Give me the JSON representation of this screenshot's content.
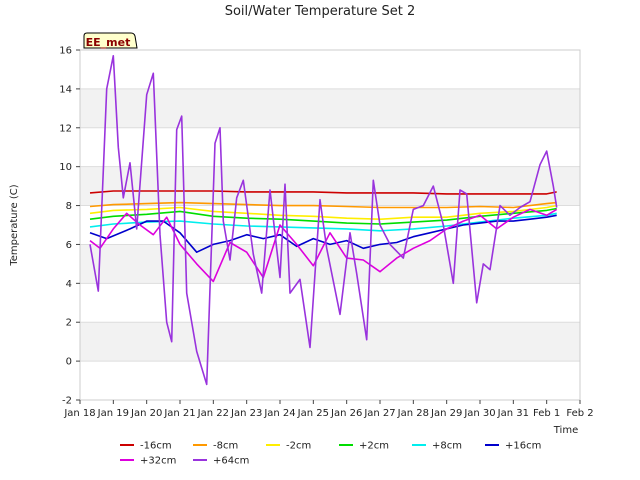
{
  "chart_data": {
    "type": "line",
    "title": "Soil/Water Temperature Set 2",
    "xlabel": "Time",
    "ylabel": "Temperature (C)",
    "badge": "EE_met",
    "xlim": [
      0,
      15
    ],
    "ylim": [
      -2,
      16
    ],
    "x_ticks": [
      0,
      1,
      2,
      3,
      4,
      5,
      6,
      7,
      8,
      9,
      10,
      11,
      12,
      13,
      14,
      15
    ],
    "x_tick_labels": [
      "Jan 18",
      "Jan 19",
      "Jan 20",
      "Jan 21",
      "Jan 22",
      "Jan 23",
      "Jan 24",
      "Jan 25",
      "Jan 26",
      "Jan 27",
      "Jan 28",
      "Jan 29",
      "Jan 30",
      "Jan 31",
      "Feb 1",
      "Feb 2"
    ],
    "y_ticks": [
      -2,
      0,
      2,
      4,
      6,
      8,
      10,
      12,
      14,
      16
    ],
    "y_tick_labels": [
      "-2",
      "0",
      "2",
      "4",
      "6",
      "8",
      "10",
      "12",
      "14",
      "16"
    ],
    "grid_bands": true,
    "legend_position": "bottom",
    "series": [
      {
        "name": "-16cm",
        "color": "#cc0000",
        "x": [
          0.3,
          1,
          2,
          3,
          4,
          5,
          6,
          7,
          8,
          9,
          10,
          11,
          12,
          13,
          14,
          14.3
        ],
        "y": [
          8.65,
          8.75,
          8.75,
          8.75,
          8.75,
          8.7,
          8.7,
          8.7,
          8.65,
          8.65,
          8.65,
          8.6,
          8.6,
          8.6,
          8.6,
          8.7
        ]
      },
      {
        "name": "-8cm",
        "color": "#ff9900",
        "x": [
          0.3,
          1,
          2,
          3,
          4,
          5,
          6,
          7,
          8,
          9,
          10,
          11,
          12,
          13,
          14,
          14.3
        ],
        "y": [
          7.95,
          8.05,
          8.1,
          8.15,
          8.1,
          8.05,
          8.0,
          8.0,
          7.95,
          7.9,
          7.9,
          7.9,
          7.95,
          7.9,
          8.1,
          8.15
        ]
      },
      {
        "name": "-2cm",
        "color": "#ffee00",
        "x": [
          0.3,
          1,
          2,
          3,
          4,
          5,
          6,
          7,
          8,
          9,
          10,
          11,
          12,
          13,
          14,
          14.3
        ],
        "y": [
          7.6,
          7.75,
          7.8,
          7.9,
          7.7,
          7.6,
          7.5,
          7.45,
          7.35,
          7.3,
          7.4,
          7.4,
          7.6,
          7.7,
          7.9,
          8.0
        ]
      },
      {
        "name": "+2cm",
        "color": "#00dd00",
        "x": [
          0.3,
          1,
          2,
          3,
          4,
          5,
          6,
          7,
          8,
          9,
          10,
          11,
          12,
          13,
          14,
          14.3
        ],
        "y": [
          7.3,
          7.45,
          7.55,
          7.7,
          7.45,
          7.35,
          7.3,
          7.2,
          7.1,
          7.05,
          7.15,
          7.25,
          7.45,
          7.6,
          7.75,
          7.85
        ]
      },
      {
        "name": "+8cm",
        "color": "#00eeee",
        "x": [
          0.3,
          1,
          2,
          3,
          4,
          5,
          6,
          7,
          8,
          9,
          10,
          11,
          12,
          13,
          14,
          14.3
        ],
        "y": [
          6.9,
          7.05,
          7.15,
          7.2,
          7.05,
          6.95,
          6.9,
          6.85,
          6.8,
          6.7,
          6.8,
          6.95,
          7.15,
          7.35,
          7.5,
          7.6
        ]
      },
      {
        "name": "+16cm",
        "color": "#0000cc",
        "x": [
          0.3,
          0.8,
          1.5,
          2,
          2.5,
          3,
          3.5,
          4,
          4.5,
          5,
          5.5,
          6,
          6.5,
          7,
          7.5,
          8,
          8.5,
          9,
          9.5,
          10,
          10.5,
          11,
          11.5,
          12,
          12.5,
          13,
          13.5,
          14,
          14.3
        ],
        "y": [
          6.6,
          6.3,
          6.8,
          7.2,
          7.2,
          6.6,
          5.6,
          6.0,
          6.2,
          6.5,
          6.3,
          6.5,
          5.9,
          6.3,
          6.0,
          6.2,
          5.8,
          6.0,
          6.1,
          6.4,
          6.6,
          6.8,
          7.0,
          7.1,
          7.2,
          7.2,
          7.3,
          7.4,
          7.5
        ]
      },
      {
        "name": "+32cm",
        "color": "#dd00dd",
        "x": [
          0.3,
          0.6,
          1,
          1.4,
          1.8,
          2.2,
          2.6,
          3.0,
          3.5,
          4.0,
          4.5,
          5.0,
          5.5,
          6.0,
          6.5,
          7.0,
          7.5,
          8.0,
          8.5,
          9.0,
          9.5,
          10.0,
          10.5,
          11.0,
          11.5,
          12.0,
          12.5,
          13.0,
          13.5,
          14.0,
          14.3
        ],
        "y": [
          6.2,
          5.8,
          6.8,
          7.6,
          7.0,
          6.5,
          7.4,
          6.0,
          5.0,
          4.1,
          6.1,
          5.6,
          4.3,
          7.0,
          6.0,
          4.9,
          6.6,
          5.3,
          5.2,
          4.6,
          5.3,
          5.8,
          6.2,
          6.8,
          7.2,
          7.5,
          6.8,
          7.4,
          7.8,
          7.5,
          7.8
        ]
      },
      {
        "name": "+64cm",
        "color": "#9933dd",
        "x": [
          0.3,
          0.55,
          0.8,
          1.0,
          1.15,
          1.3,
          1.5,
          1.7,
          2.0,
          2.2,
          2.4,
          2.6,
          2.75,
          2.9,
          3.05,
          3.2,
          3.5,
          3.8,
          4.05,
          4.2,
          4.3,
          4.5,
          4.7,
          4.9,
          5.2,
          5.45,
          5.7,
          6.0,
          6.15,
          6.3,
          6.6,
          6.9,
          7.2,
          7.4,
          7.8,
          8.1,
          8.3,
          8.6,
          8.8,
          9.0,
          9.3,
          9.7,
          10.0,
          10.3,
          10.6,
          10.9,
          11.2,
          11.4,
          11.6,
          11.9,
          12.1,
          12.3,
          12.6,
          12.9,
          13.2,
          13.5,
          13.8,
          14.0,
          14.2,
          14.3
        ],
        "y": [
          6.0,
          3.6,
          14.0,
          15.7,
          11.0,
          8.4,
          10.2,
          6.8,
          13.7,
          14.8,
          6.5,
          2.0,
          1.0,
          11.9,
          12.6,
          3.5,
          0.5,
          -1.2,
          11.2,
          12.0,
          7.2,
          5.2,
          8.4,
          9.3,
          5.5,
          3.5,
          8.8,
          4.3,
          9.1,
          3.5,
          4.2,
          0.7,
          8.3,
          5.8,
          2.4,
          6.6,
          4.5,
          1.1,
          9.3,
          7.0,
          6.0,
          5.3,
          7.8,
          8.0,
          9.0,
          7.0,
          4.0,
          8.8,
          8.6,
          3.0,
          5.0,
          4.7,
          8.0,
          7.5,
          7.9,
          8.2,
          10.1,
          10.8,
          9.0,
          7.9
        ]
      }
    ]
  }
}
